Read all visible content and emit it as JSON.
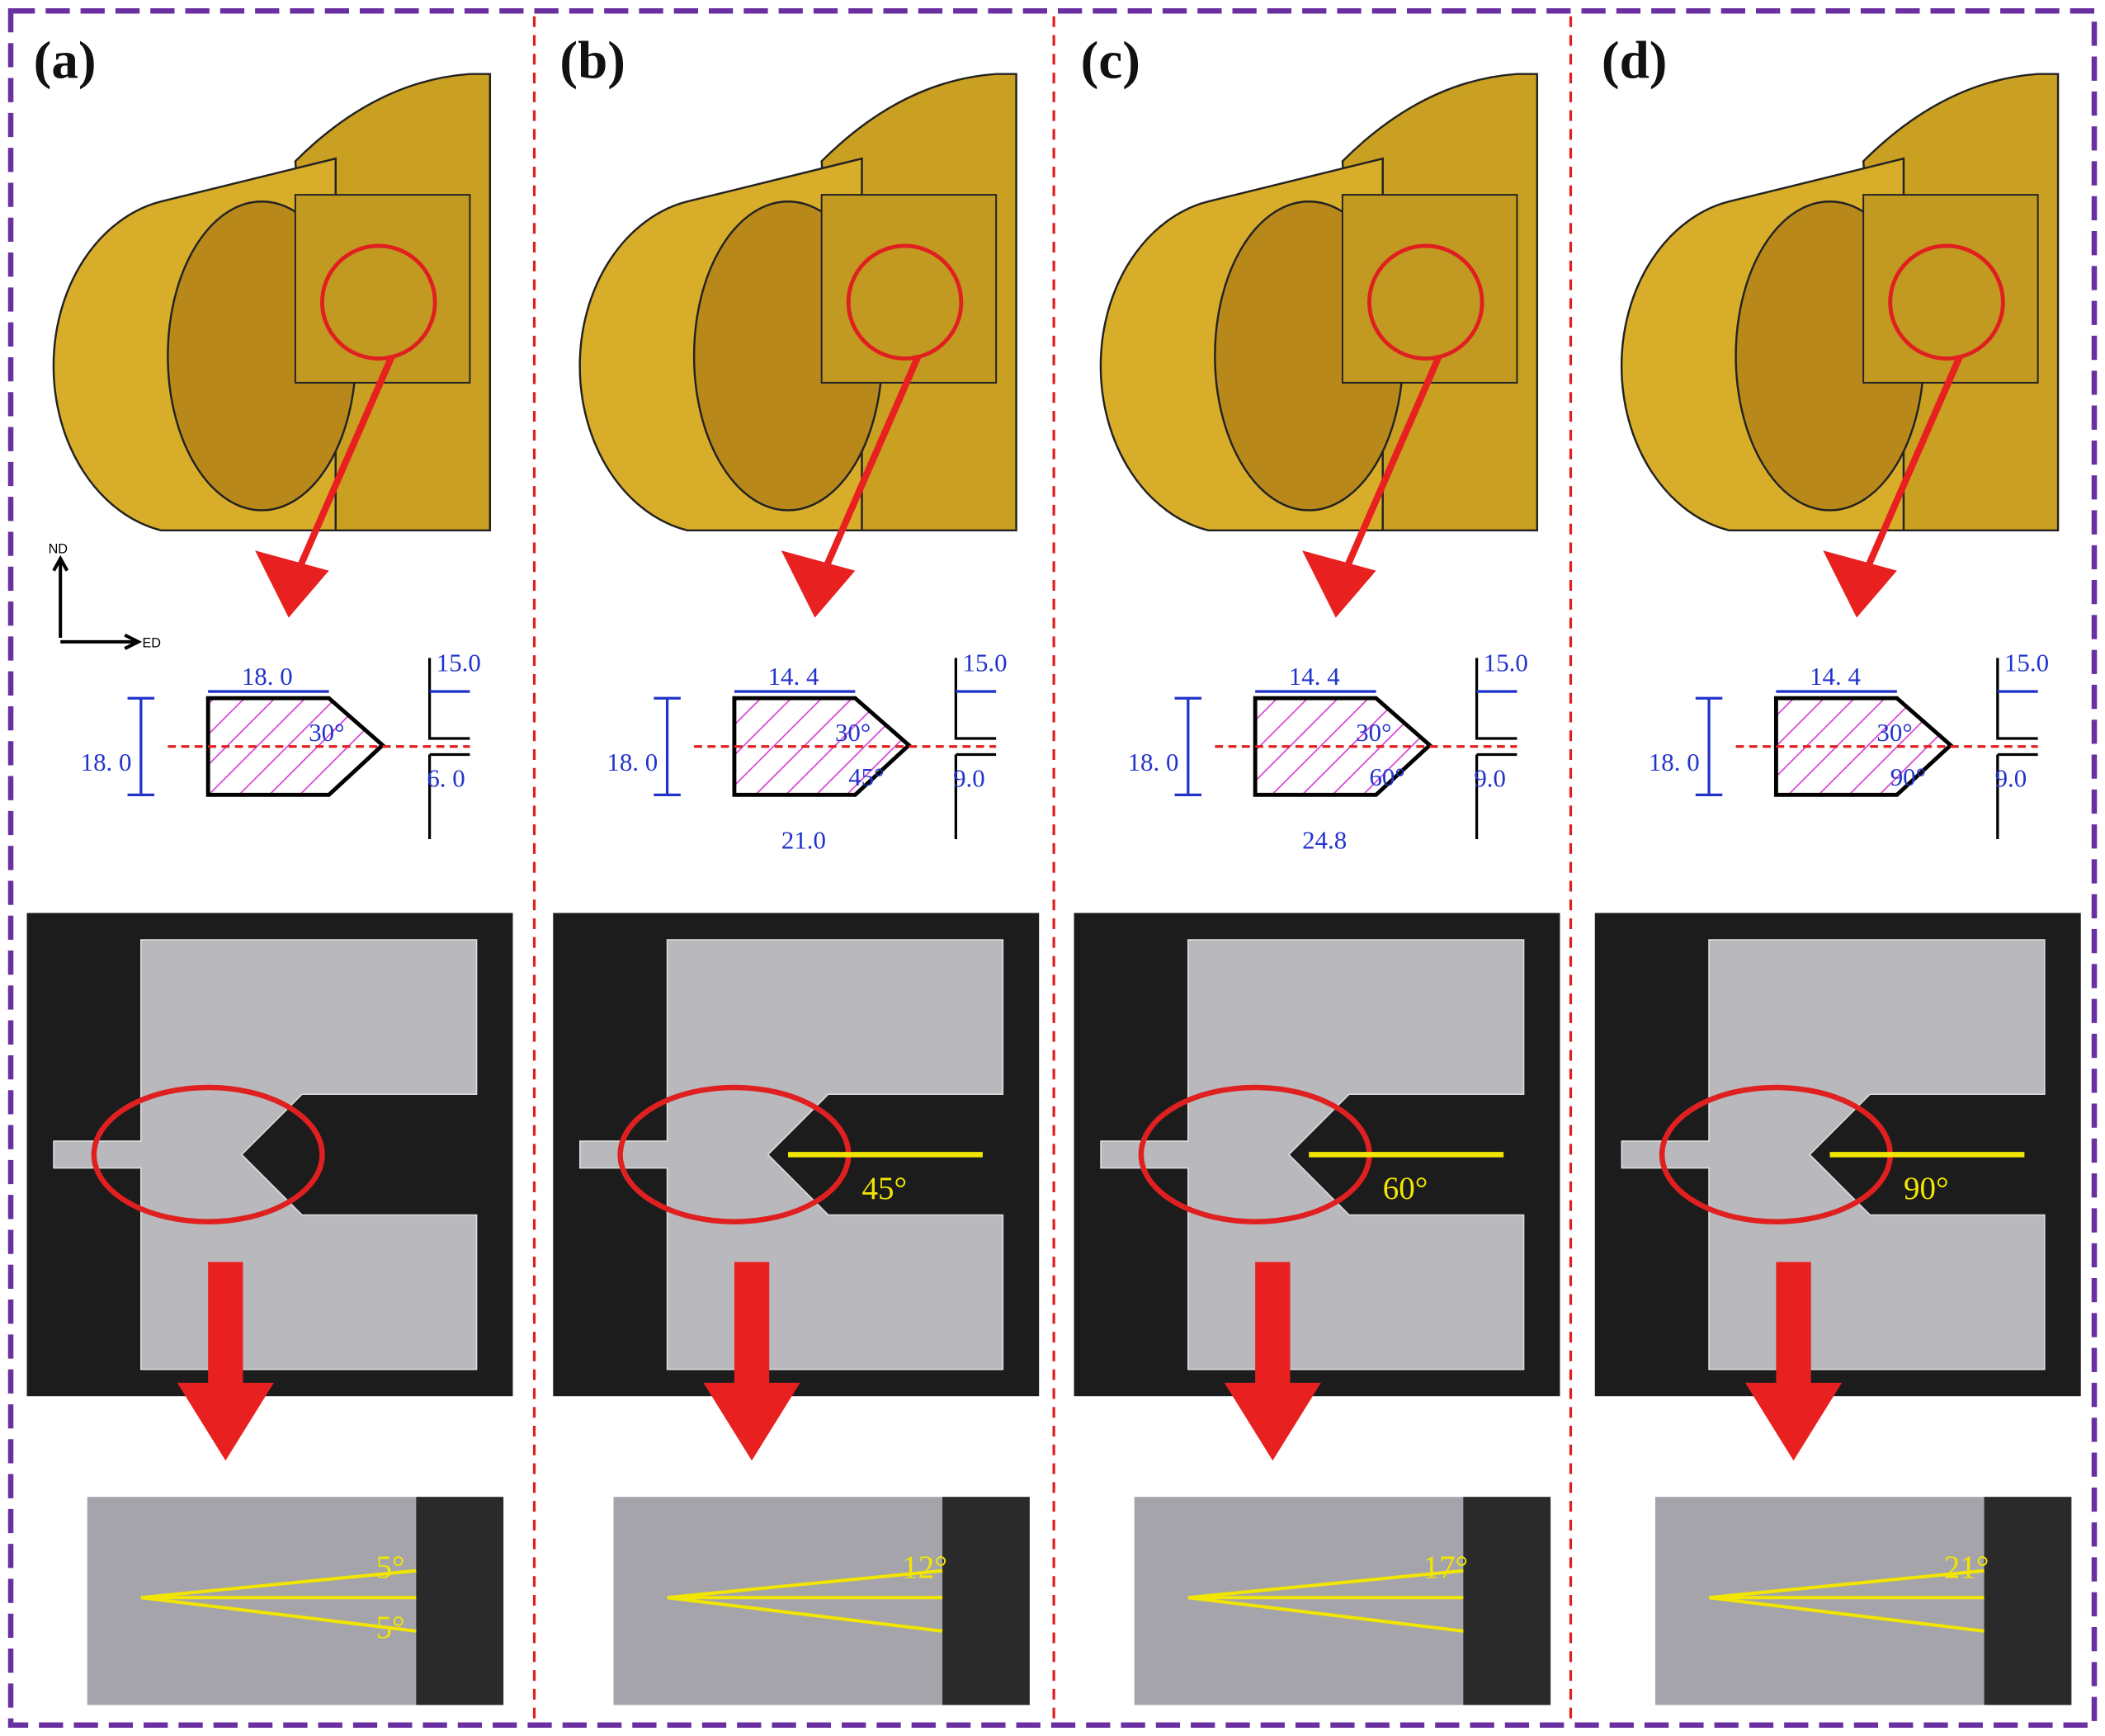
{
  "axes": {
    "nd": "ND",
    "ed": "ED"
  },
  "panels": [
    {
      "label": "(a)",
      "top_width": "18. 0",
      "gap_width": "15.0",
      "height": "18. 0",
      "die_angle": "30°",
      "exit_height": "6. 0",
      "zoom_angles": [
        "5°",
        "5°"
      ]
    },
    {
      "label": "(b)",
      "top_width": "14. 4",
      "gap_width": "15.0",
      "height": "18. 0",
      "die_angle": "30°",
      "exit_angle": "45°",
      "exit_height": "9.0",
      "bottom_width": "21.0",
      "photo_angle": "45°",
      "zoom_angles": [
        "12°"
      ]
    },
    {
      "label": "(c)",
      "top_width": "14. 4",
      "gap_width": "15.0",
      "height": "18. 0",
      "die_angle": "30°",
      "exit_angle": "60°",
      "exit_height": "9.0",
      "bottom_width": "24.8",
      "photo_angle": "60°",
      "zoom_angles": [
        "17°"
      ]
    },
    {
      "label": "(d)",
      "top_width": "14. 4",
      "gap_width": "15.0",
      "height": "18. 0",
      "die_angle": "30°",
      "exit_angle": "90°",
      "exit_height": "9.0",
      "photo_angle": "90°",
      "zoom_angles": [
        "21°"
      ]
    }
  ]
}
